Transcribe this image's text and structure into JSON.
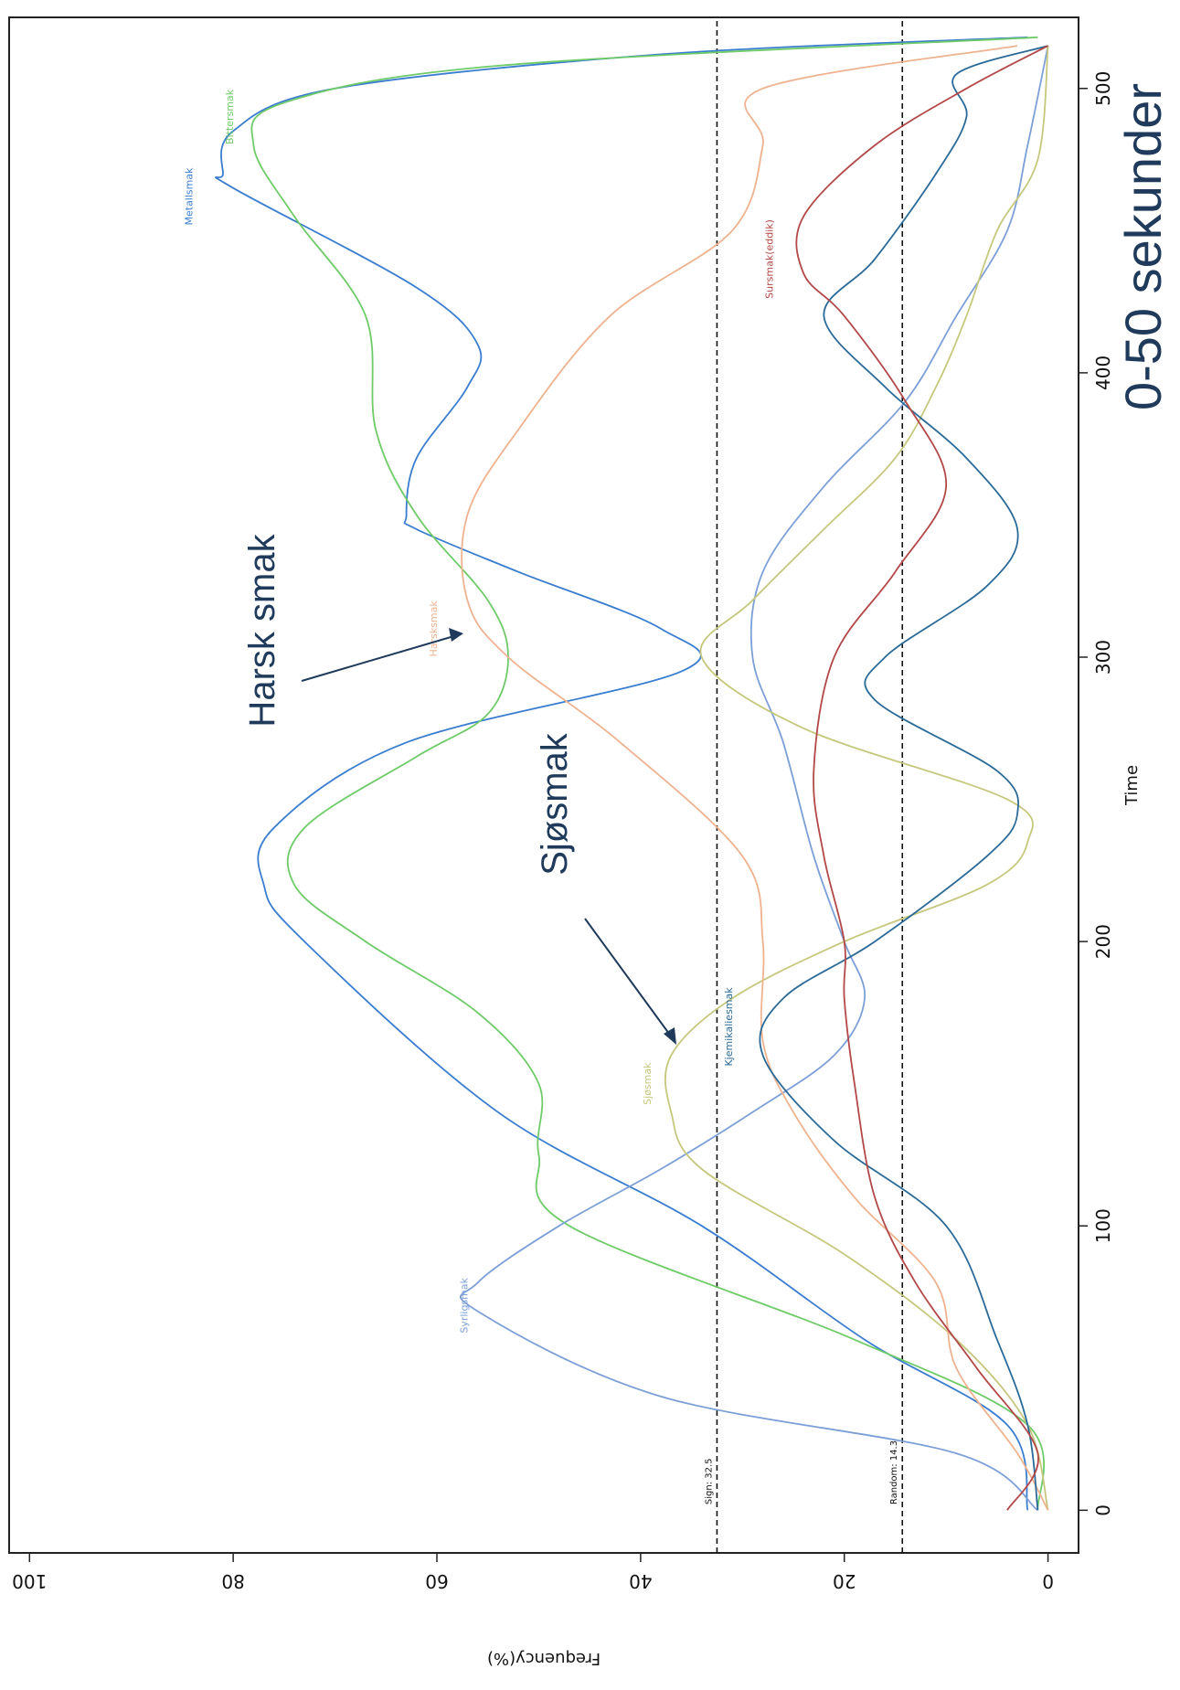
{
  "chart_data": {
    "type": "line",
    "title": "",
    "xlabel": "Time",
    "ylabel": "Frequency(%)",
    "xlim": [
      -15,
      525
    ],
    "ylim": [
      -3,
      102
    ],
    "xticks": [
      0,
      100,
      200,
      300,
      400,
      500
    ],
    "yticks": [
      0,
      20,
      40,
      60,
      80,
      100
    ],
    "grid": false,
    "legend": "none",
    "reference_lines": [
      {
        "label": "Sign: 32.5",
        "y": 32.5
      },
      {
        "label": "Random: 14.3",
        "y": 14.3
      }
    ],
    "series": [
      {
        "name": "Metallsmak",
        "color": "#3a7dd0",
        "label_at": [
          462,
          84
        ],
        "points": [
          [
            0,
            2
          ],
          [
            30,
            4
          ],
          [
            60,
            18
          ],
          [
            100,
            34
          ],
          [
            140,
            54
          ],
          [
            200,
            73
          ],
          [
            220,
            77
          ],
          [
            240,
            76
          ],
          [
            270,
            63
          ],
          [
            295,
            36
          ],
          [
            310,
            38
          ],
          [
            330,
            52
          ],
          [
            345,
            62
          ],
          [
            350,
            63
          ],
          [
            370,
            62
          ],
          [
            395,
            57
          ],
          [
            410,
            56
          ],
          [
            430,
            62
          ],
          [
            465,
            80
          ],
          [
            470,
            81
          ],
          [
            485,
            80
          ],
          [
            500,
            70
          ],
          [
            512,
            38
          ],
          [
            518,
            2
          ]
        ]
      },
      {
        "name": "Bittersmak",
        "color": "#6ecb68",
        "label_at": [
          490,
          80
        ],
        "points": [
          [
            0,
            1
          ],
          [
            30,
            2
          ],
          [
            60,
            19
          ],
          [
            100,
            47
          ],
          [
            125,
            50
          ],
          [
            150,
            50
          ],
          [
            175,
            56
          ],
          [
            200,
            67
          ],
          [
            220,
            74
          ],
          [
            240,
            73
          ],
          [
            265,
            62
          ],
          [
            280,
            55
          ],
          [
            300,
            53
          ],
          [
            320,
            55
          ],
          [
            350,
            62
          ],
          [
            380,
            66
          ],
          [
            420,
            67
          ],
          [
            455,
            74
          ],
          [
            480,
            78
          ],
          [
            495,
            75
          ],
          [
            508,
            54
          ],
          [
            518,
            1
          ]
        ]
      },
      {
        "name": "Syrligsmak",
        "color": "#7c9fd8",
        "label_at": [
          72,
          57
        ],
        "points": [
          [
            0,
            1
          ],
          [
            20,
            9
          ],
          [
            40,
            38
          ],
          [
            70,
            56
          ],
          [
            80,
            56
          ],
          [
            100,
            48
          ],
          [
            120,
            38
          ],
          [
            140,
            29
          ],
          [
            160,
            21
          ],
          [
            180,
            18
          ],
          [
            200,
            20
          ],
          [
            230,
            23
          ],
          [
            270,
            26
          ],
          [
            300,
            29
          ],
          [
            330,
            28
          ],
          [
            360,
            22
          ],
          [
            390,
            14
          ],
          [
            420,
            9
          ],
          [
            450,
            4
          ],
          [
            480,
            2
          ],
          [
            515,
            0
          ]
        ]
      },
      {
        "name": "Sjøsmak",
        "color": "#c5c87c",
        "label_at": [
          150,
          39
        ],
        "points": [
          [
            0,
            0
          ],
          [
            30,
            2
          ],
          [
            60,
            9
          ],
          [
            90,
            20
          ],
          [
            120,
            34
          ],
          [
            140,
            37
          ],
          [
            160,
            37
          ],
          [
            180,
            31
          ],
          [
            200,
            20
          ],
          [
            220,
            6
          ],
          [
            235,
            2
          ],
          [
            250,
            4
          ],
          [
            275,
            24
          ],
          [
            300,
            34
          ],
          [
            320,
            29
          ],
          [
            345,
            22
          ],
          [
            370,
            15
          ],
          [
            395,
            11
          ],
          [
            420,
            8
          ],
          [
            450,
            5
          ],
          [
            475,
            1
          ],
          [
            515,
            0
          ]
        ]
      },
      {
        "name": "Harsksmak",
        "color": "#efb28f",
        "label_at": [
          310,
          60
        ],
        "points": [
          [
            0,
            0
          ],
          [
            20,
            3
          ],
          [
            50,
            9
          ],
          [
            80,
            11
          ],
          [
            110,
            19
          ],
          [
            140,
            25
          ],
          [
            165,
            28
          ],
          [
            200,
            28
          ],
          [
            230,
            30
          ],
          [
            270,
            42
          ],
          [
            300,
            53
          ],
          [
            320,
            57
          ],
          [
            350,
            57
          ],
          [
            380,
            52
          ],
          [
            420,
            43
          ],
          [
            450,
            31
          ],
          [
            480,
            28
          ],
          [
            500,
            28
          ],
          [
            515,
            3
          ]
        ]
      },
      {
        "name": "Kjemikaliesmak",
        "color": "#2a6a98",
        "label_at": [
          170,
          31
        ],
        "points": [
          [
            0,
            1
          ],
          [
            30,
            2
          ],
          [
            60,
            5
          ],
          [
            100,
            10
          ],
          [
            130,
            21
          ],
          [
            160,
            28
          ],
          [
            180,
            26
          ],
          [
            200,
            17
          ],
          [
            230,
            6
          ],
          [
            245,
            3
          ],
          [
            260,
            5
          ],
          [
            285,
            17
          ],
          [
            300,
            16
          ],
          [
            325,
            6
          ],
          [
            345,
            3
          ],
          [
            370,
            8
          ],
          [
            395,
            16
          ],
          [
            420,
            22
          ],
          [
            440,
            17
          ],
          [
            470,
            11
          ],
          [
            490,
            8
          ],
          [
            505,
            9
          ],
          [
            515,
            0
          ]
        ]
      },
      {
        "name": "Sursmak(eddik)",
        "color": "#b34848",
        "label_at": [
          440,
          27
        ],
        "points": [
          [
            0,
            4
          ],
          [
            20,
            1
          ],
          [
            50,
            7
          ],
          [
            80,
            13
          ],
          [
            110,
            17
          ],
          [
            150,
            19
          ],
          [
            180,
            20
          ],
          [
            200,
            20
          ],
          [
            230,
            22
          ],
          [
            260,
            23
          ],
          [
            300,
            21
          ],
          [
            330,
            15
          ],
          [
            360,
            10
          ],
          [
            390,
            14
          ],
          [
            420,
            20
          ],
          [
            435,
            24
          ],
          [
            455,
            24
          ],
          [
            480,
            17
          ],
          [
            500,
            8
          ],
          [
            515,
            0
          ]
        ]
      }
    ]
  },
  "annotations": {
    "harsk": "Harsk smak",
    "sjo": "Sjøsmak",
    "range": "0-50 sekunder"
  }
}
